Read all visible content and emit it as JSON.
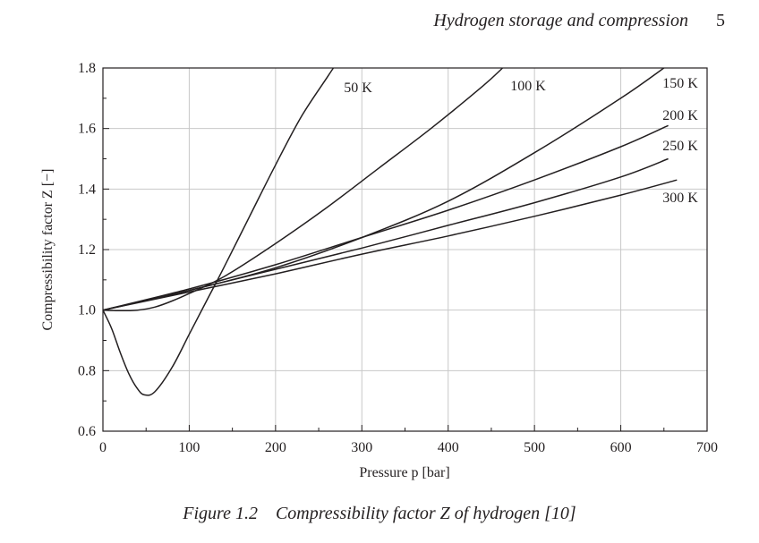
{
  "header": {
    "title": "Hydrogen storage and compression",
    "page_number": "5"
  },
  "caption": {
    "label": "Figure 1.2",
    "text": "Compressibility factor Z of hydrogen [10]"
  },
  "chart_data": {
    "type": "line",
    "xlabel": "Pressure p [bar]",
    "ylabel": "Compressibility factor Z [−]",
    "xlim": [
      0,
      700
    ],
    "ylim": [
      0.6,
      1.8
    ],
    "xticks": [
      0,
      100,
      200,
      300,
      400,
      500,
      600,
      700
    ],
    "yticks": [
      0.6,
      0.8,
      1.0,
      1.2,
      1.4,
      1.6,
      1.8
    ],
    "grid": true,
    "line_color": "#231f20",
    "series": [
      {
        "name": "50 K",
        "x": [
          0,
          10,
          20,
          30,
          40,
          48,
          60,
          80,
          100,
          120,
          140,
          170,
          200,
          230,
          260,
          267
        ],
        "y": [
          1.0,
          0.94,
          0.86,
          0.79,
          0.74,
          0.72,
          0.73,
          0.81,
          0.92,
          1.03,
          1.14,
          1.31,
          1.48,
          1.64,
          1.77,
          1.8
        ]
      },
      {
        "name": "100 K",
        "x": [
          0,
          20,
          40,
          60,
          80,
          100,
          140,
          200,
          260,
          320,
          380,
          440,
          463
        ],
        "y": [
          1.0,
          0.998,
          1.0,
          1.01,
          1.03,
          1.055,
          1.11,
          1.22,
          1.34,
          1.47,
          1.6,
          1.74,
          1.8
        ]
      },
      {
        "name": "150 K",
        "x": [
          0,
          100,
          200,
          300,
          400,
          500,
          600,
          650
        ],
        "y": [
          1.0,
          1.065,
          1.14,
          1.24,
          1.36,
          1.52,
          1.7,
          1.8
        ]
      },
      {
        "name": "200 K",
        "x": [
          0,
          100,
          200,
          300,
          400,
          500,
          600,
          655
        ],
        "y": [
          1.0,
          1.07,
          1.15,
          1.24,
          1.33,
          1.43,
          1.54,
          1.61
        ]
      },
      {
        "name": "250 K",
        "x": [
          0,
          100,
          200,
          300,
          400,
          500,
          600,
          655
        ],
        "y": [
          1.0,
          1.065,
          1.135,
          1.205,
          1.28,
          1.355,
          1.44,
          1.5
        ]
      },
      {
        "name": "300 K",
        "x": [
          0,
          100,
          200,
          300,
          400,
          500,
          600,
          665
        ],
        "y": [
          1.0,
          1.06,
          1.12,
          1.185,
          1.245,
          1.31,
          1.38,
          1.43
        ]
      }
    ]
  }
}
